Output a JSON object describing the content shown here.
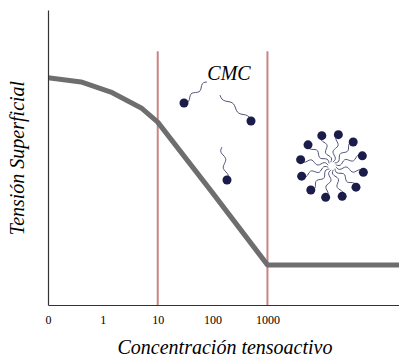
{
  "chart_data": {
    "type": "line",
    "x_label": "Concentración tensoactivo",
    "y_label": "Tensión Superficial",
    "annotations": [
      "CMC"
    ],
    "x": [
      0.1,
      0.4,
      1.4,
      5,
      10,
      100,
      1000,
      250000
    ],
    "values": [
      77,
      75.6,
      72.2,
      66.8,
      62,
      38,
      13.6,
      13.6
    ],
    "color": "#6e6e6e",
    "vlines": [
      10,
      1000
    ],
    "log": "x",
    "xlim": [
      0.1,
      250000
    ],
    "xticks": [
      {
        "value": 0.1,
        "label": "0"
      },
      1,
      10,
      100,
      1000
    ],
    "ylim": [
      0,
      100
    ],
    "yticks": [],
    "tick_labels": "x",
    "grid": false
  }
}
